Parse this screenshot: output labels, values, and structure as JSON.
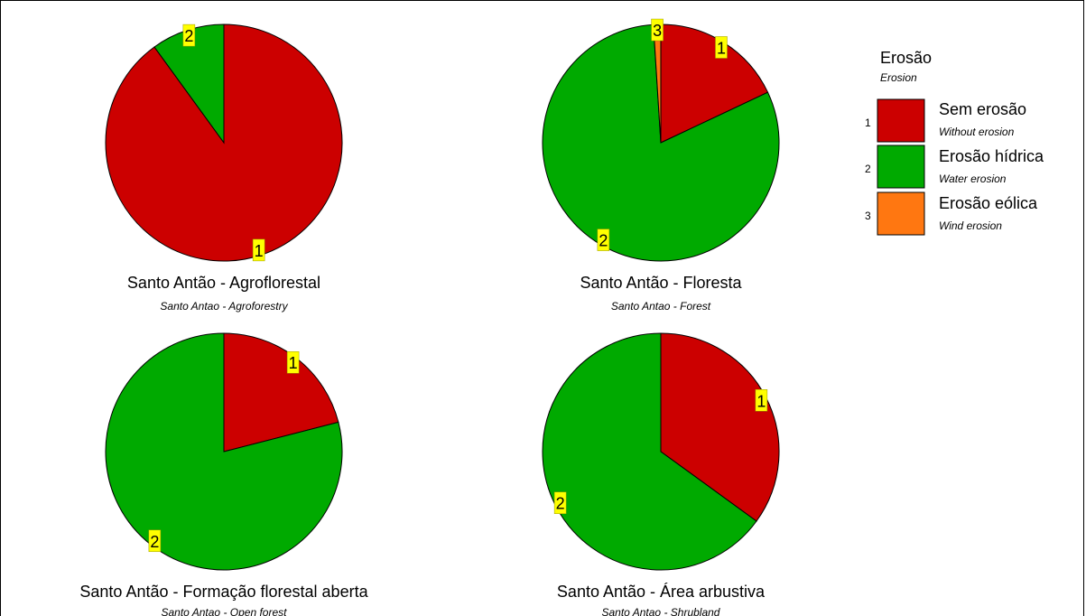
{
  "chart_data": [
    {
      "type": "pie",
      "title": "Santo Antão - Agroflorestal",
      "subtitle": "Santo Antao - Agroforestry",
      "slices": [
        {
          "label": "1",
          "value": 90
        },
        {
          "label": "2",
          "value": 10
        }
      ]
    },
    {
      "type": "pie",
      "title": "Santo Antão - Floresta",
      "subtitle": "Santo Antao - Forest",
      "slices": [
        {
          "label": "1",
          "value": 18
        },
        {
          "label": "2",
          "value": 81
        },
        {
          "label": "3",
          "value": 1
        }
      ]
    },
    {
      "type": "pie",
      "title": "Santo Antão - Formação florestal aberta",
      "subtitle": "Santo Antao - Open forest",
      "slices": [
        {
          "label": "1",
          "value": 21
        },
        {
          "label": "2",
          "value": 79
        }
      ]
    },
    {
      "type": "pie",
      "title": "Santo Antão - Área arbustiva",
      "subtitle": "Santo Antao - Shrubland",
      "slices": [
        {
          "label": "1",
          "value": 35
        },
        {
          "label": "2",
          "value": 65
        }
      ]
    }
  ],
  "legend": {
    "title": "Erosão",
    "subtitle": "Erosion",
    "placement": "top-right",
    "items": [
      {
        "num": "1",
        "label": "Sem erosão",
        "sublabel": "Without erosion",
        "color": "#CC0000"
      },
      {
        "num": "2",
        "label": "Erosão hídrica",
        "sublabel": "Water erosion",
        "color": "#00AA00"
      },
      {
        "num": "3",
        "label": "Erosão eólica",
        "sublabel": "Wind erosion",
        "color": "#FF7711"
      }
    ]
  },
  "colors": {
    "label_box": "#FFFF00",
    "outline": "#000000"
  }
}
